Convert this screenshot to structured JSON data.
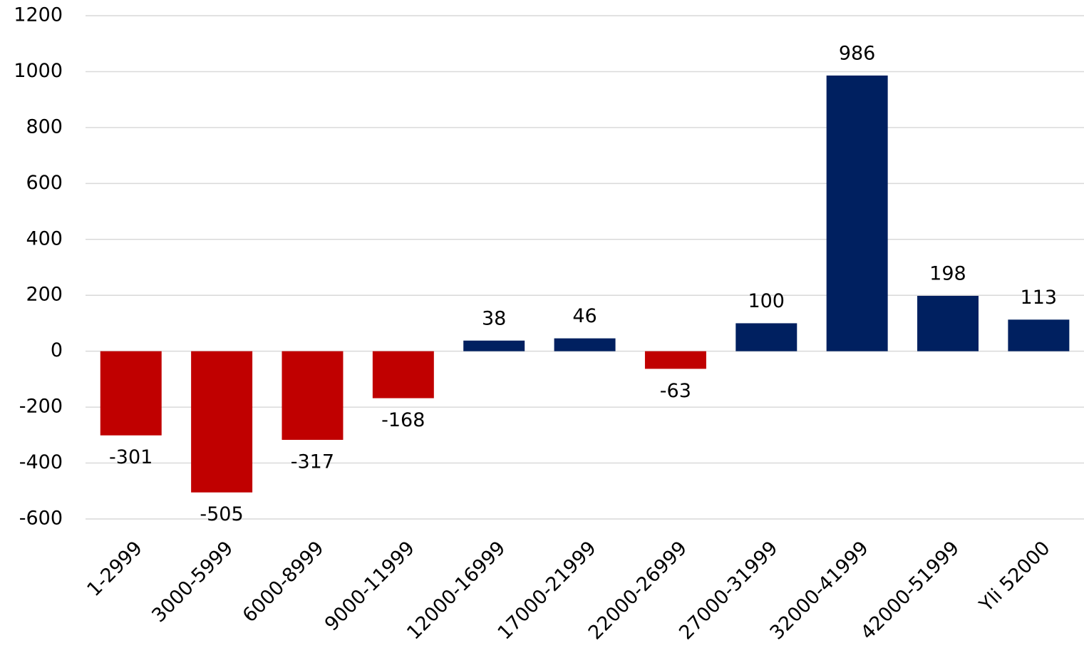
{
  "chart_data": {
    "type": "bar",
    "categories": [
      "1-2999",
      "3000-5999",
      "6000-8999",
      "9000-11999",
      "12000-16999",
      "17000-21999",
      "22000-26999",
      "27000-31999",
      "32000-41999",
      "42000-51999",
      "Yli 52000"
    ],
    "values": [
      -301,
      -505,
      -317,
      -168,
      38,
      46,
      -63,
      100,
      986,
      198,
      113
    ],
    "color_positive": "#002060",
    "color_negative": "#c00000",
    "ylim": [
      -600,
      1200
    ],
    "yticks": [
      -600,
      -400,
      -200,
      0,
      200,
      400,
      600,
      800,
      1000,
      1200
    ],
    "grid": true
  }
}
